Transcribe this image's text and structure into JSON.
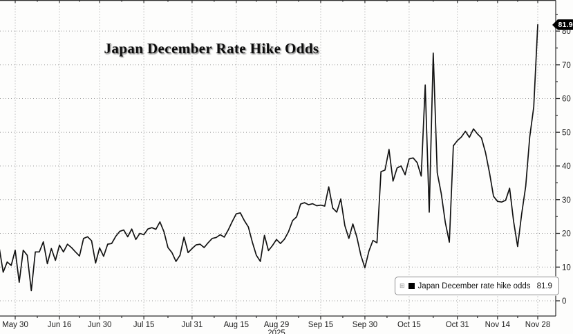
{
  "title": "Japan December Rate Hike Odds",
  "legend": {
    "expander_icon": "⊞",
    "swatch_color": "#000000",
    "label": "Japan December rate hike odds",
    "value": "81.9"
  },
  "last_value_badge": "81.9",
  "colors": {
    "line": "#121212",
    "grid": "#9b9b9b",
    "axis": "#2e2e2e",
    "tick_label": "#1c1c1c",
    "background": "#fdfdfc",
    "badge_bg": "#000000",
    "badge_text": "#ffffff"
  },
  "chart_data": {
    "type": "line",
    "title": "Japan December Rate Hike Odds",
    "series": [
      {
        "name": "Japan December rate hike odds",
        "values": [
          16,
          8.5,
          11.5,
          10.5,
          15,
          5.5,
          15,
          13.5,
          3,
          14.5,
          14.5,
          17.5,
          11,
          15.5,
          12,
          16.5,
          14.5,
          16.8,
          15.8,
          14.5,
          13.3,
          18.5,
          19,
          17.8,
          11.2,
          15.7,
          13.2,
          16.8,
          17,
          19.1,
          20.6,
          21,
          19,
          21.3,
          18.2,
          20,
          19.6,
          21.3,
          21.7,
          21.2,
          23.4,
          20.5,
          15.8,
          14.3,
          11.7,
          13.5,
          18.9,
          14.3,
          15.5,
          16.6,
          16.8,
          15.8,
          17.2,
          18.5,
          18.8,
          19.6,
          18.9,
          21,
          23.5,
          25.8,
          26.1,
          23.8,
          21.9,
          17.4,
          13.5,
          11.7,
          19.4,
          14.9,
          16.4,
          18.2,
          17,
          18.3,
          20.5,
          23.8,
          24.9,
          28.7,
          29.1,
          28.5,
          28.8,
          28.2,
          28.4,
          28.1,
          33.8,
          27.5,
          26.3,
          30.2,
          22.3,
          18.5,
          22.8,
          18.9,
          13.5,
          9.8,
          14.8,
          17.9,
          17.2,
          38.3,
          38.8,
          44.9,
          35.5,
          39.4,
          40,
          37.4,
          42.1,
          42.4,
          41,
          37,
          64,
          26.3,
          73.5,
          38,
          31.8,
          23.3,
          17.4,
          46,
          47.5,
          48.6,
          50.3,
          48.5,
          51,
          49.5,
          48.3,
          44,
          38,
          31,
          29.5,
          29.3,
          29.8,
          33.4,
          23.5,
          16.1,
          25.7,
          34,
          48.6,
          57.5,
          81.9
        ]
      }
    ],
    "x_tick_labels": [
      "May 30",
      "Jun 16",
      "Jun 30",
      "Jul 15",
      "Jul 31",
      "Aug 15",
      "Aug 29",
      "Sep 15",
      "Sep 30",
      "Oct 15",
      "Oct 31",
      "Nov 14",
      "Nov 28"
    ],
    "x_tick_indices": [
      4,
      15,
      25,
      36,
      48,
      59,
      69,
      80,
      91,
      102,
      114,
      124,
      134
    ],
    "x_year_label": "2025",
    "x_year_under_tick": "Aug 29",
    "y_ticks": [
      0,
      10,
      20,
      30,
      40,
      50,
      60,
      70,
      80
    ],
    "y_minor_ticks": [
      5,
      15,
      25,
      35,
      45,
      55,
      65,
      75,
      85
    ],
    "ylim": [
      -4.5,
      89.2
    ],
    "grid": "dotted",
    "legend_position": "bottom-right",
    "last_value": 81.9
  }
}
